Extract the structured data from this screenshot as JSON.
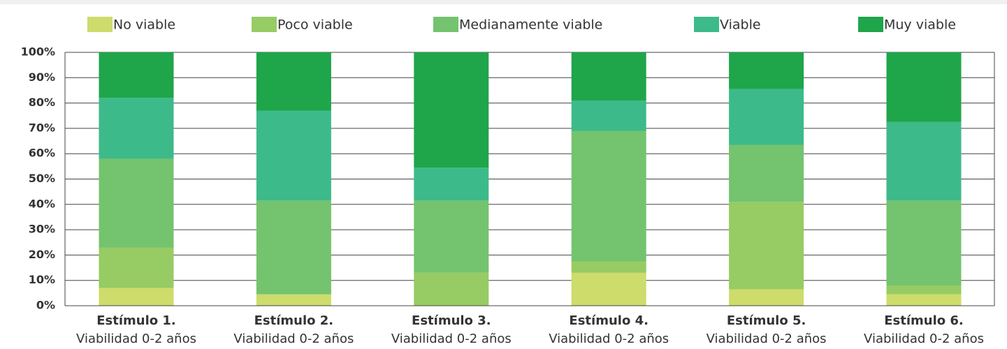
{
  "chart_data": {
    "type": "stacked_bar",
    "categories": [
      "Estímulo 1.",
      "Estímulo 2.",
      "Estímulo 3.",
      "Estímulo 4.",
      "Estímulo 5.",
      "Estímulo 6."
    ],
    "category_sublabels": [
      "Viabilidad 0-2 años",
      "Viabilidad 0-2 años",
      "Viabilidad 0-2 años",
      "Viabilidad 0-2 años",
      "Viabilidad 0-2 años",
      "Viabilidad 0-2 años"
    ],
    "series": [
      {
        "name": "No viable",
        "color": "#cddc6a",
        "values": [
          7,
          4.5,
          0,
          13,
          6.5,
          4.5
        ]
      },
      {
        "name": "Poco viable",
        "color": "#97cb63",
        "values": [
          16,
          0,
          13,
          4.5,
          34.5,
          3.5
        ]
      },
      {
        "name": "Medianamente viable",
        "color": "#74c36e",
        "values": [
          35,
          37,
          28.5,
          51.5,
          22.5,
          33.5
        ]
      },
      {
        "name": "Viable",
        "color": "#3dba8a",
        "values": [
          24,
          35.5,
          13,
          12,
          22,
          31
        ]
      },
      {
        "name": "Muy viable",
        "color": "#1fa54a",
        "values": [
          18,
          23,
          45.5,
          19,
          14.5,
          27.5
        ]
      }
    ],
    "ylim": [
      0,
      100
    ],
    "yticks": [
      {
        "value": 0,
        "label": "0%"
      },
      {
        "value": 10,
        "label": "10%"
      },
      {
        "value": 20,
        "label": "20%"
      },
      {
        "value": 30,
        "label": "30%"
      },
      {
        "value": 40,
        "label": "40%"
      },
      {
        "value": 50,
        "label": "50%"
      },
      {
        "value": 60,
        "label": "60%"
      },
      {
        "value": 70,
        "label": "70%"
      },
      {
        "value": 80,
        "label": "80%"
      },
      {
        "value": 90,
        "label": "90%"
      },
      {
        "value": 100,
        "label": "100%"
      }
    ],
    "grid": true,
    "legend": "top"
  }
}
